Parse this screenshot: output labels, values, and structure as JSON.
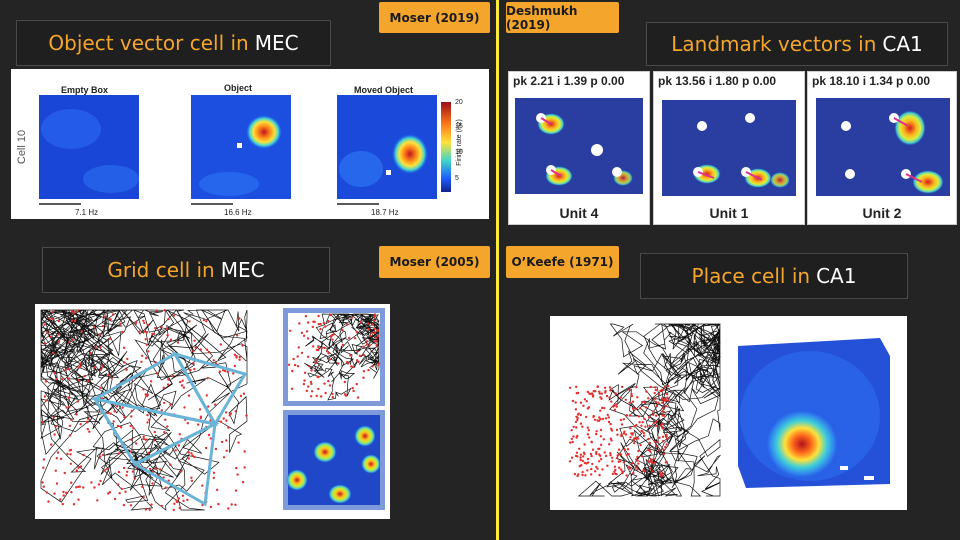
{
  "top_left": {
    "title_highlight": "Object vector cell in",
    "title_rest": "MEC",
    "citation": "Moser (2019)",
    "cell_label": "Cell 10",
    "maps": [
      {
        "title": "Empty Box",
        "rate": "7.1 Hz"
      },
      {
        "title": "Object",
        "rate": "16.6 Hz"
      },
      {
        "title": "Moved Object",
        "rate": "18.7 Hz"
      }
    ],
    "colorbar_ticks": [
      "20",
      "15",
      "10",
      "5"
    ],
    "colorbar_label": "Firing rate (Hz)"
  },
  "top_right": {
    "title_highlight": "Landmark vectors in",
    "title_rest": "CA1",
    "citation": "Deshmukh (2019)",
    "units": [
      {
        "header": "pk 2.21 i 1.39 p 0.00",
        "label": "Unit 4"
      },
      {
        "header": "pk 13.56 i 1.80 p 0.00",
        "label": "Unit 1"
      },
      {
        "header": "pk 18.10 i 1.34 p 0.00",
        "label": "Unit 2"
      }
    ]
  },
  "bottom_left": {
    "title_highlight": "Grid cell in",
    "title_rest": "MEC",
    "citation": "Moser (2005)"
  },
  "bottom_right": {
    "title_highlight": "Place cell in",
    "title_rest": "CA1",
    "citation": "O’Keefe (1971)"
  },
  "colors": {
    "background": "#242424",
    "accent": "#f4a52c",
    "divider": "#ffeb3b",
    "trajectory": "#111111",
    "spikes": "#e53030"
  }
}
